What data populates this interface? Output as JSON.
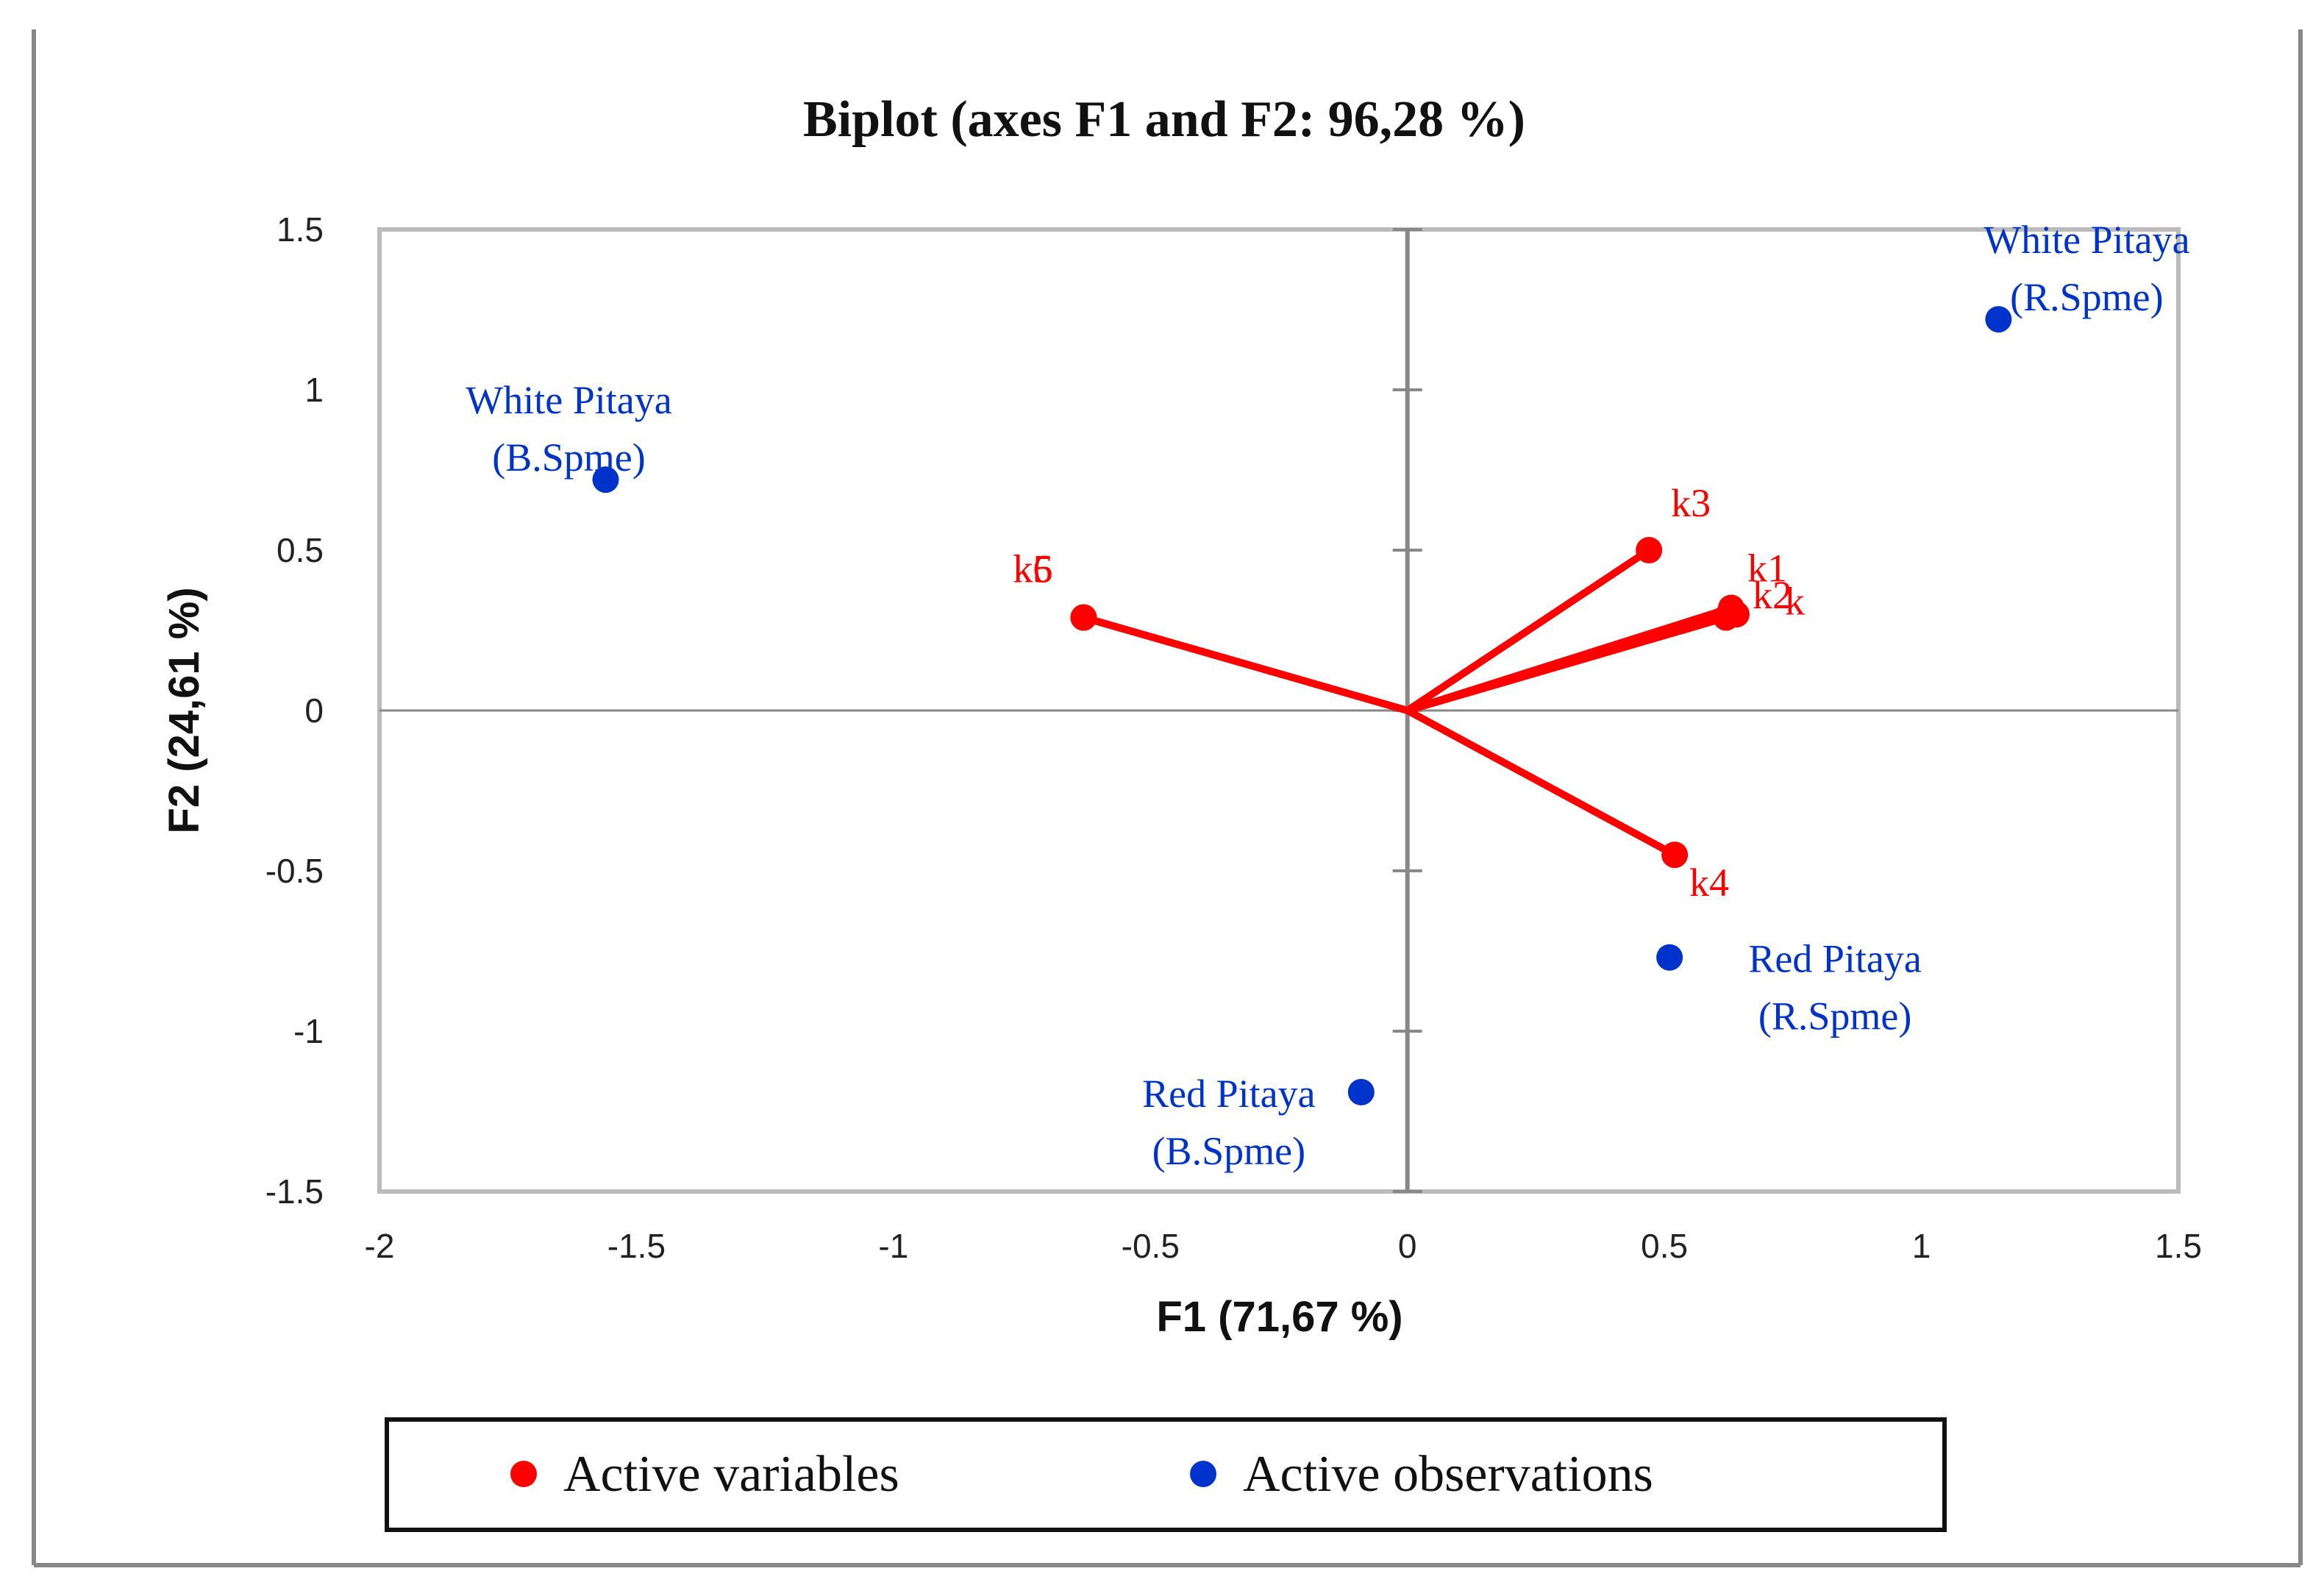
{
  "chart_data": {
    "type": "scatter",
    "subtype": "biplot",
    "title": "Biplot (axes F1 and F2: 96,28 %)",
    "xlabel": "F1 (71,67 %)",
    "ylabel": "F2 (24,61 %)",
    "xlim": [
      -2,
      1.5
    ],
    "ylim": [
      -1.5,
      1.5
    ],
    "xticks": [
      "-2",
      "-1.5",
      "-1",
      "-0.5",
      "0",
      "0.5",
      "1",
      "1.5"
    ],
    "yticks": [
      "1.5",
      "1",
      "0.5",
      "0",
      "-0.5",
      "-1",
      "-1.5"
    ],
    "grid": false,
    "zero_lines": true,
    "legend_position": "bottom",
    "colors": {
      "variables": "#ff0000",
      "observations": "#0033cc"
    },
    "series": [
      {
        "name": "Active variables",
        "color": "#ff0000",
        "style": "vectors-from-origin",
        "points": [
          {
            "label": "k1",
            "x": 0.63,
            "y": 0.32
          },
          {
            "label": "k2",
            "x": 0.64,
            "y": 0.3
          },
          {
            "label": "k",
            "x": 0.62,
            "y": 0.29
          },
          {
            "label": "k3",
            "x": 0.47,
            "y": 0.5
          },
          {
            "label": "k4",
            "x": 0.52,
            "y": -0.45
          },
          {
            "label": "k5",
            "x": -0.63,
            "y": 0.29
          },
          {
            "label": "k6",
            "x": -0.63,
            "y": 0.29
          }
        ]
      },
      {
        "name": "Active observations",
        "color": "#0033cc",
        "style": "points",
        "points": [
          {
            "label_lines": [
              "White Pitaya",
              "(R.Spme)"
            ],
            "x": 1.15,
            "y": 1.22
          },
          {
            "label_lines": [
              "White Pitaya",
              "(B.Spme)"
            ],
            "x": -1.56,
            "y": 0.72
          },
          {
            "label_lines": [
              "Red Pitaya",
              "(R.Spme)"
            ],
            "x": 0.51,
            "y": -0.77
          },
          {
            "label_lines": [
              "Red Pitaya",
              "(B.Spme)"
            ],
            "x": -0.09,
            "y": -1.19
          }
        ]
      }
    ],
    "legend": [
      {
        "label": "Active variables",
        "color": "#ff0000"
      },
      {
        "label": "Active observations",
        "color": "#0033cc"
      }
    ]
  }
}
